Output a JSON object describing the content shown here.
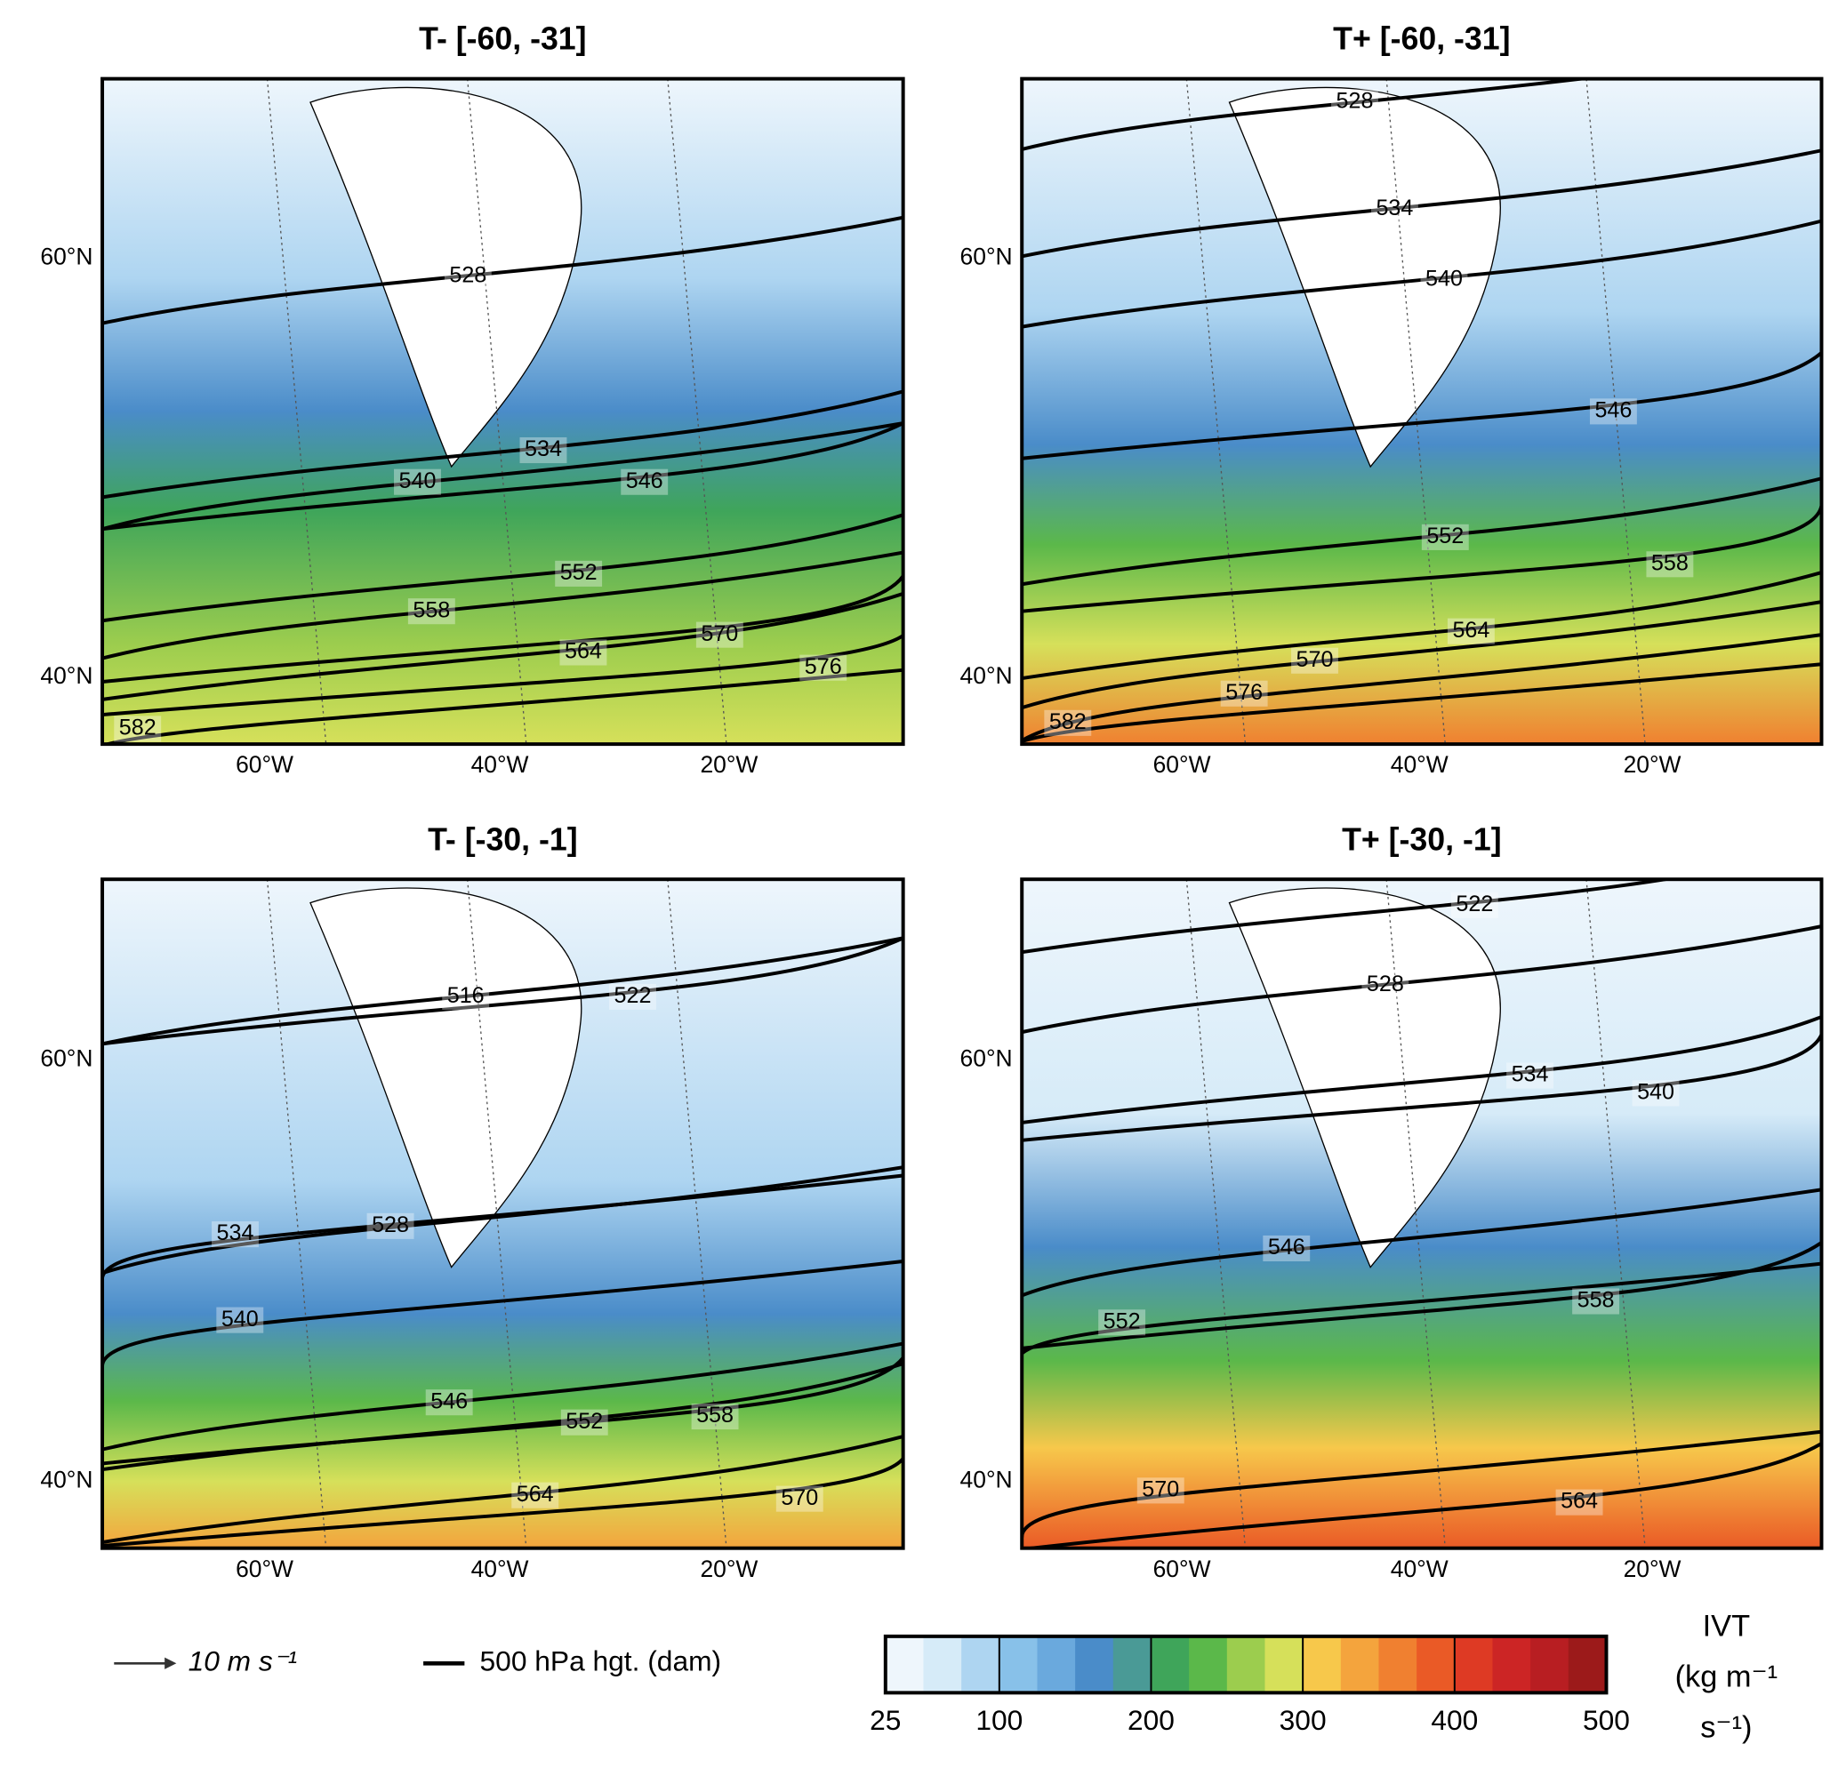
{
  "panels": [
    {
      "title": "T- [-60, -31]",
      "lat_labels": [
        "60°N",
        "40°N"
      ],
      "lon_labels": [
        "60°W",
        "40°W",
        "20°W"
      ],
      "contour_labels": [
        528,
        534,
        540,
        546,
        552,
        558,
        564,
        570,
        576,
        582
      ]
    },
    {
      "title": "T+ [-60, -31]",
      "lat_labels": [
        "60°N",
        "40°N"
      ],
      "lon_labels": [
        "60°W",
        "40°W",
        "20°W"
      ],
      "contour_labels": [
        528,
        534,
        540,
        546,
        552,
        558,
        564,
        570,
        576,
        582
      ]
    },
    {
      "title": "T- [-30, -1]",
      "lat_labels": [
        "60°N",
        "40°N"
      ],
      "lon_labels": [
        "60°W",
        "40°W",
        "20°W"
      ],
      "contour_labels": [
        516,
        522,
        528,
        534,
        540,
        546,
        552,
        558,
        564,
        570
      ]
    },
    {
      "title": "T+ [-30, -1]",
      "lat_labels": [
        "60°N",
        "40°N"
      ],
      "lon_labels": [
        "60°W",
        "40°W",
        "20°W"
      ],
      "contour_labels": [
        522,
        528,
        534,
        540,
        546,
        552,
        558,
        564,
        570
      ]
    }
  ],
  "legend": {
    "arrow_label": "10 m s⁻¹",
    "line_label": "500 hPa hgt. (dam)"
  },
  "colorbar": {
    "title_lines": [
      "IVT",
      "(kg m⁻¹",
      "s⁻¹)"
    ],
    "lim": [
      25,
      500
    ],
    "ticks": [
      25,
      100,
      200,
      300,
      400,
      500
    ],
    "colors": [
      "#eef6fc",
      "#d6ebf8",
      "#aed5f1",
      "#88c1e9",
      "#6aa9dd",
      "#4a8cc9",
      "#4a9a96",
      "#3fa55a",
      "#5bb84a",
      "#9ccd4e",
      "#d6e05a",
      "#f7c84b",
      "#f4a43d",
      "#f08030",
      "#ea5a26",
      "#de3a24",
      "#cc2525",
      "#b81e22",
      "#9c1a1a"
    ]
  }
}
